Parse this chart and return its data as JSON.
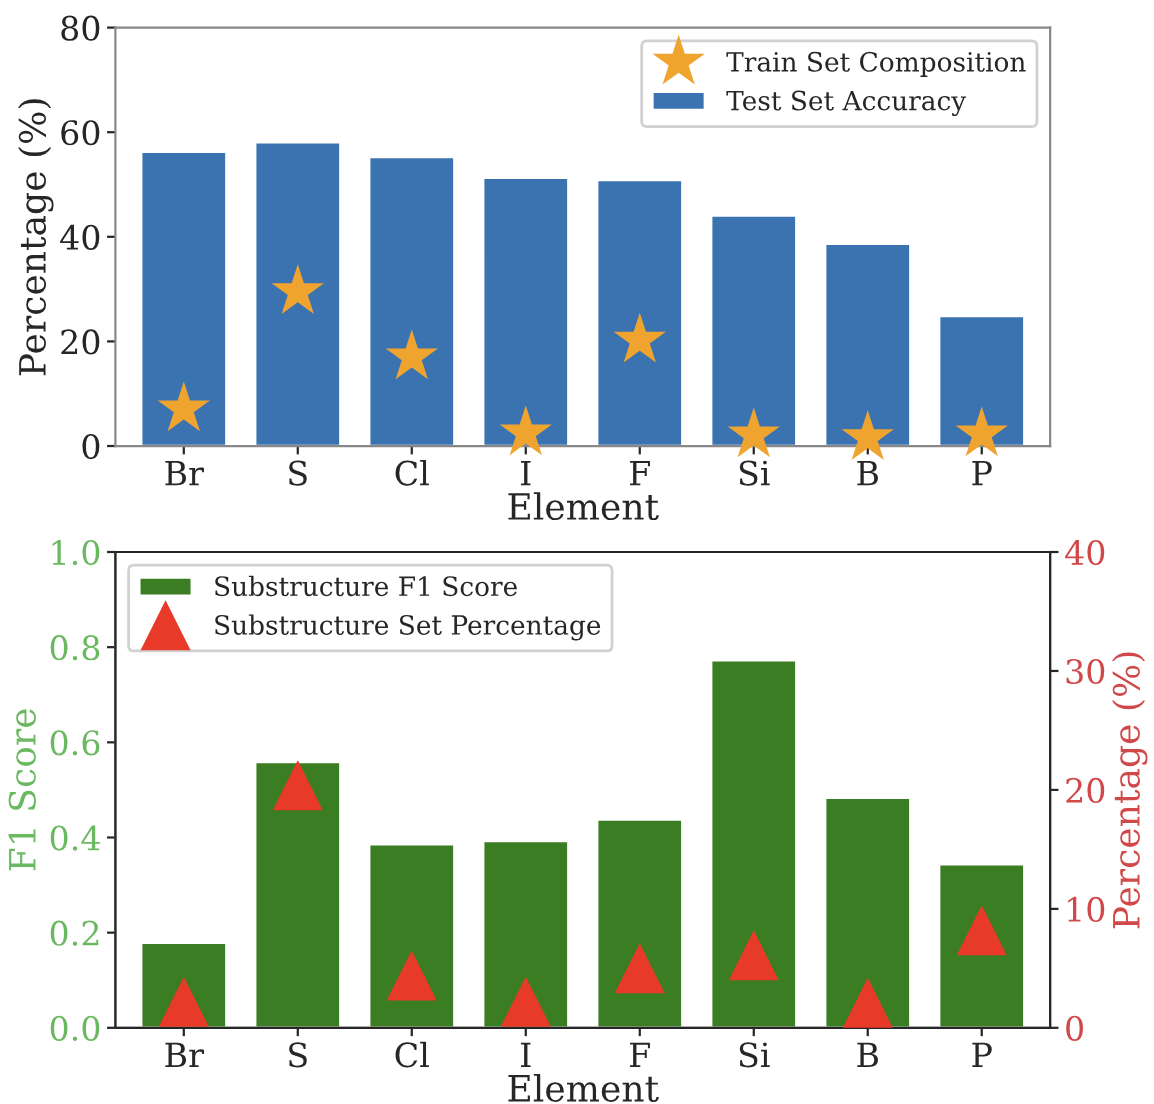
{
  "chart_data": [
    {
      "type": "bar",
      "xlabel": "Element",
      "ylabel": "Percentage (%)",
      "categories": [
        "Br",
        "S",
        "Cl",
        "I",
        "F",
        "Si",
        "B",
        "P"
      ],
      "series": [
        {
          "name": "Train Set Composition",
          "type": "scatter",
          "marker": "star",
          "color": "#f0a430",
          "values": [
            7.1,
            29.5,
            17.0,
            2.5,
            20.2,
            2.1,
            1.6,
            2.3
          ]
        },
        {
          "name": "Test Set Accuracy",
          "color": "#3a73b0",
          "values": [
            56.3,
            58.1,
            55.3,
            51.3,
            50.9,
            44.1,
            38.7,
            24.9
          ]
        }
      ],
      "ylim": [
        0,
        80
      ],
      "yticks": [
        0,
        20,
        40,
        60,
        80
      ],
      "legend": "top right",
      "grid": false
    },
    {
      "type": "bar",
      "xlabel": "Element",
      "ylabel": "F1 Score",
      "y2label": "Percentage (%)",
      "categories": [
        "Br",
        "S",
        "Cl",
        "I",
        "F",
        "Si",
        "B",
        "P"
      ],
      "series": [
        {
          "name": "Substructure F1 Score",
          "color": "#3a7d22",
          "values": [
            0.179,
            0.559,
            0.386,
            0.393,
            0.438,
            0.773,
            0.484,
            0.344
          ]
        },
        {
          "name": "Substructure Set Percentage",
          "type": "scatter",
          "marker": "triangle",
          "axis": "y2",
          "color": "#e83a28",
          "values": [
            2.2,
            20.4,
            4.4,
            2.2,
            5.0,
            6.1,
            2.1,
            8.2
          ]
        }
      ],
      "ylim": [
        0,
        1.0
      ],
      "yticks": [
        {
          "value": 0,
          "label": "0.0"
        },
        {
          "value": 0.2,
          "label": "0.2"
        },
        {
          "value": 0.4,
          "label": "0.4"
        },
        {
          "value": 0.6,
          "label": "0.6"
        },
        {
          "value": 0.8,
          "label": "0.8"
        },
        {
          "value": 1.0,
          "label": "1.0"
        }
      ],
      "y2lim": [
        0,
        40
      ],
      "y2ticks": [
        0,
        10,
        20,
        30,
        40
      ],
      "legend": "top left",
      "grid": false
    }
  ]
}
